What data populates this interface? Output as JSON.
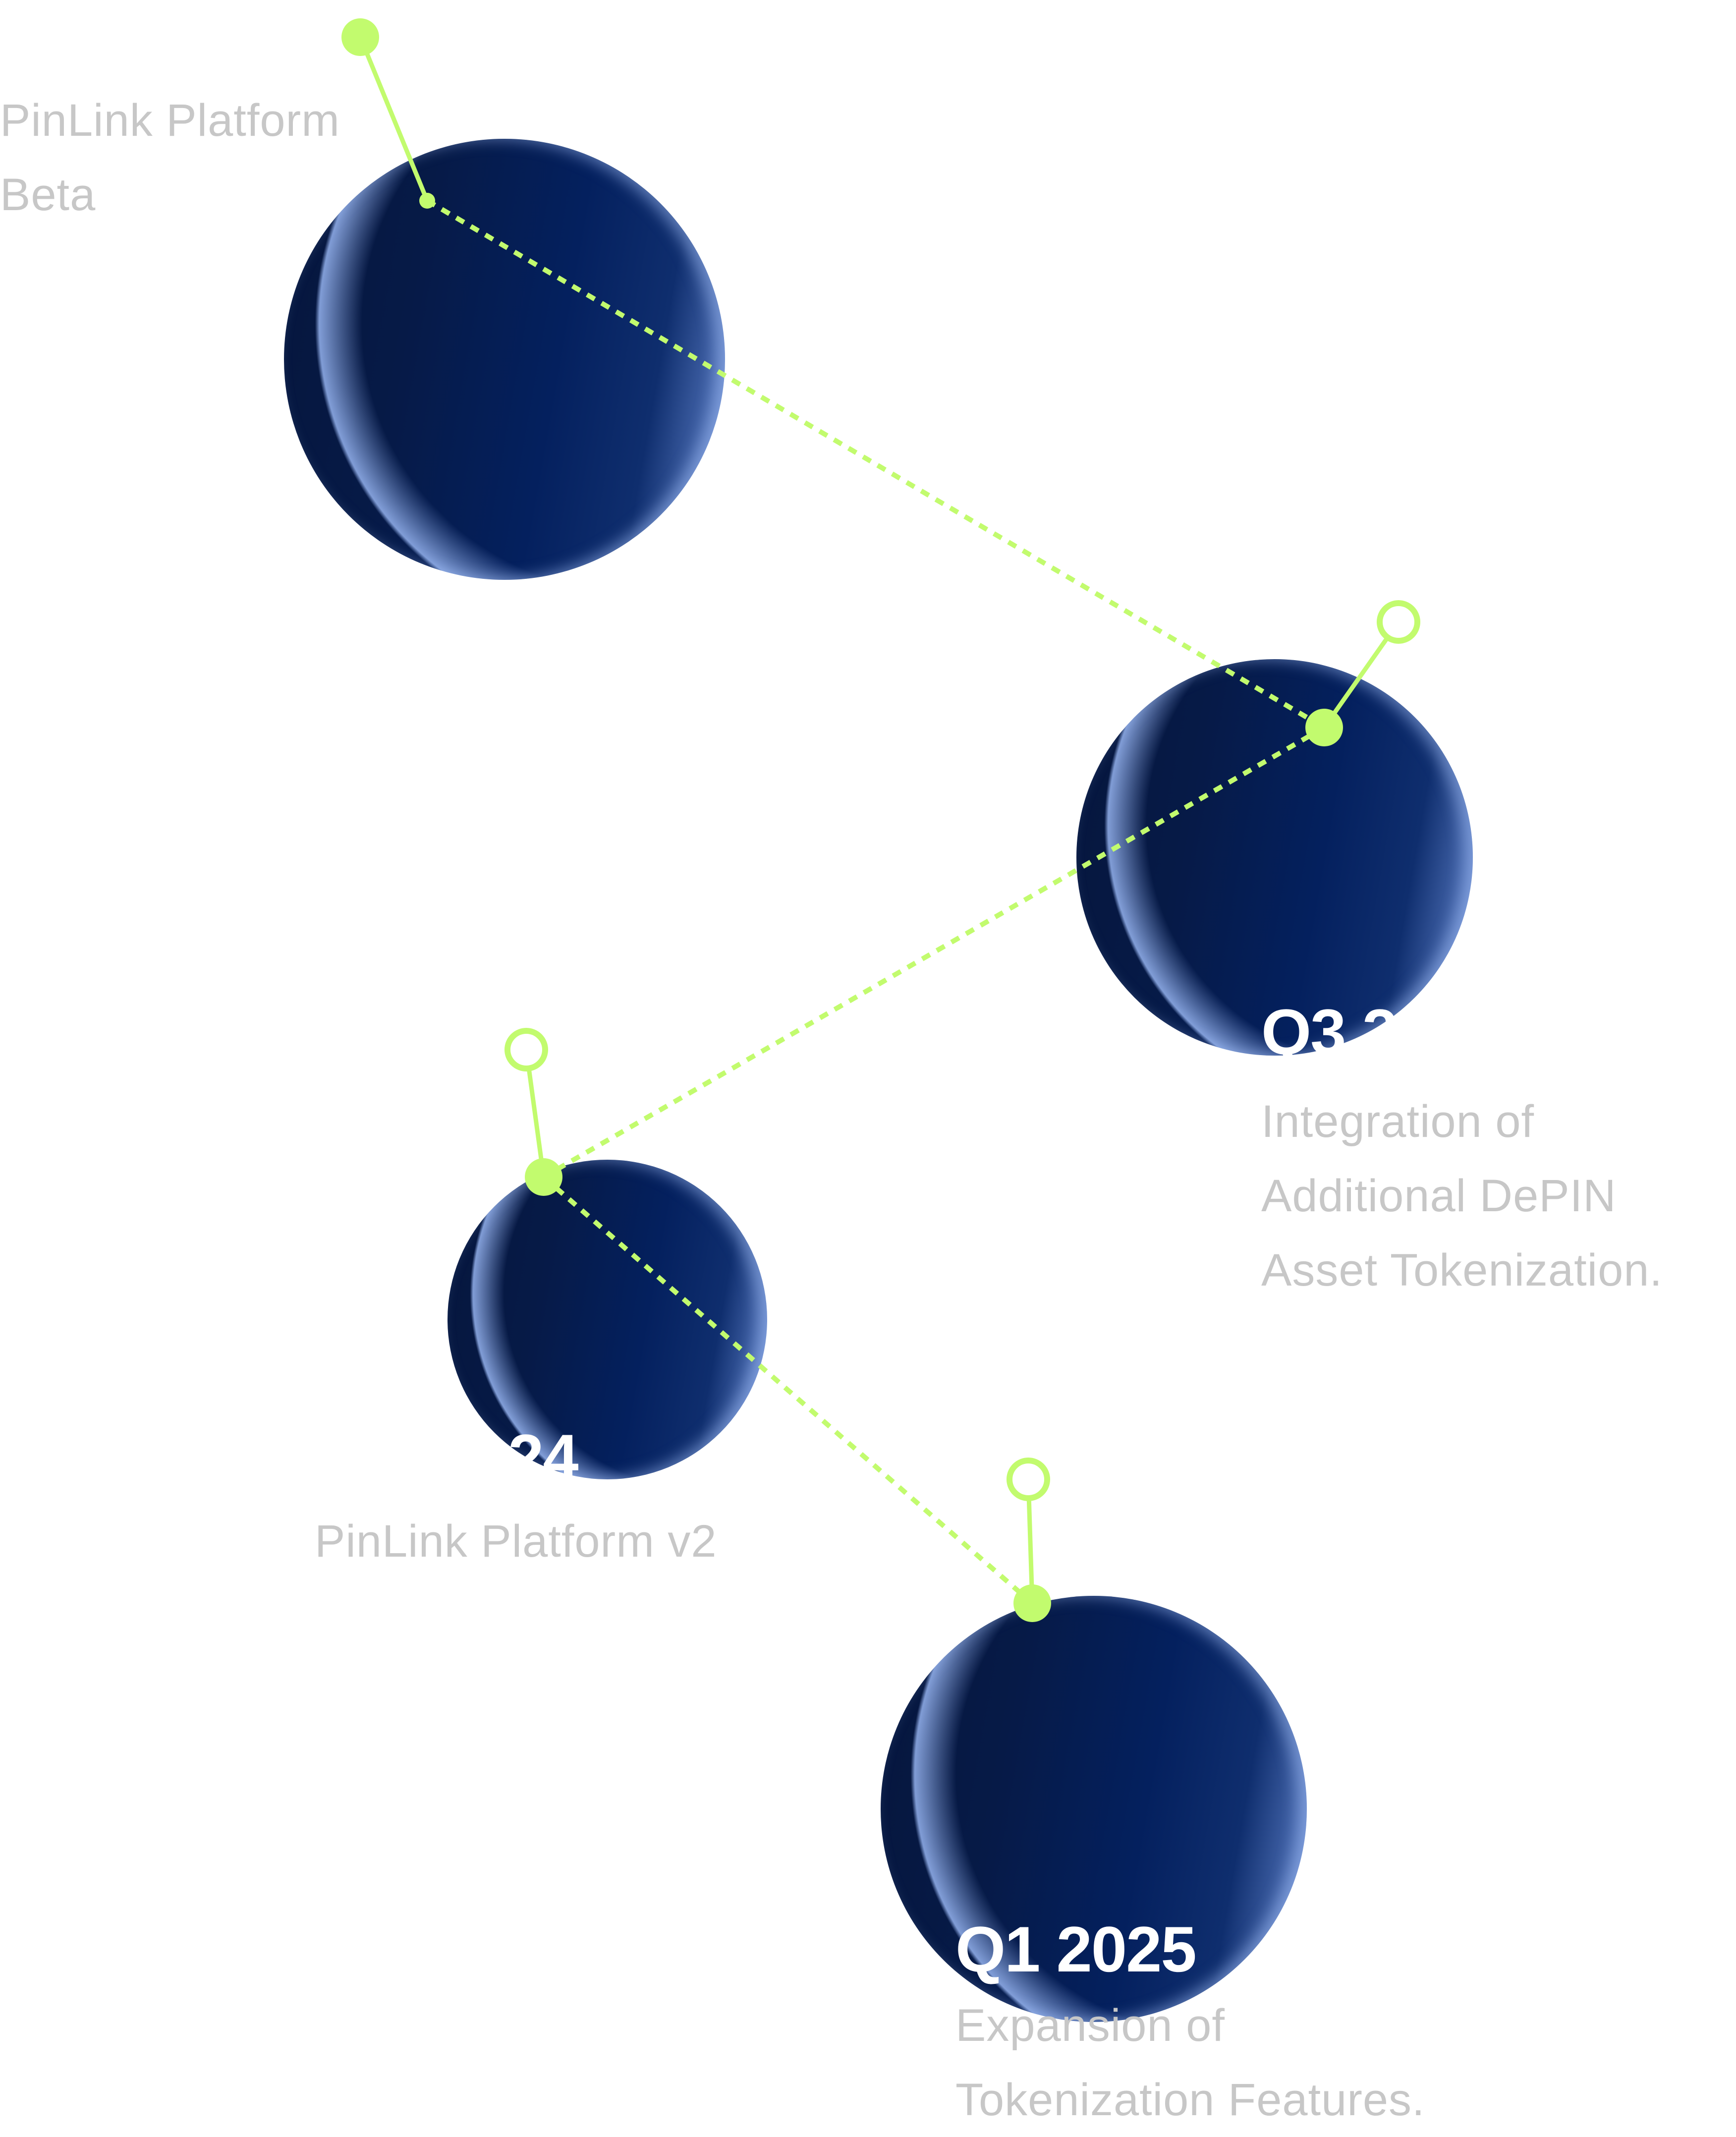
{
  "colors": {
    "accent": "#c2fb6e",
    "sphere_dark": "#061a47",
    "sphere_mid": "#04205e",
    "sphere_edge": "#a8c1f0",
    "label_text": "#c7c7c7",
    "quarter_text": "#ffffff"
  },
  "milestones": [
    {
      "quarter": "",
      "description": "PinLink Platform\nBeta"
    },
    {
      "quarter": "Q3 2",
      "description": "Integration of\nAdditional DePIN\nAsset Tokenization."
    },
    {
      "quarter": "24",
      "description": "PinLink Platform v2"
    },
    {
      "quarter": "Q1 2025",
      "description": "Expansion of\nTokenization Features."
    }
  ]
}
